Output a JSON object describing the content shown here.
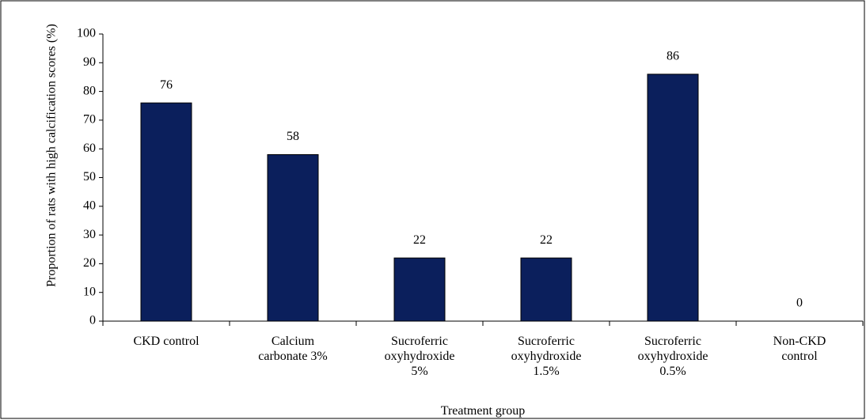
{
  "chart_data": {
    "type": "bar",
    "x_label": "Treatment group",
    "y_label": "Proportion of rats with high calcification scores (%)",
    "categories": [
      "CKD control",
      "Calcium carbonate 3%",
      "Sucroferric oxyhydroxide 5%",
      "Sucroferric oxyhydroxide 1.5%",
      "Sucroferric oxyhydroxide 0.5%",
      "Non-CKD control"
    ],
    "values": [
      76,
      58,
      22,
      22,
      86,
      0
    ],
    "color": "#0b1f5c",
    "ylim": [
      0,
      100
    ],
    "yticks": [
      0,
      10,
      20,
      30,
      40,
      50,
      60,
      70,
      80,
      90,
      100
    ]
  }
}
